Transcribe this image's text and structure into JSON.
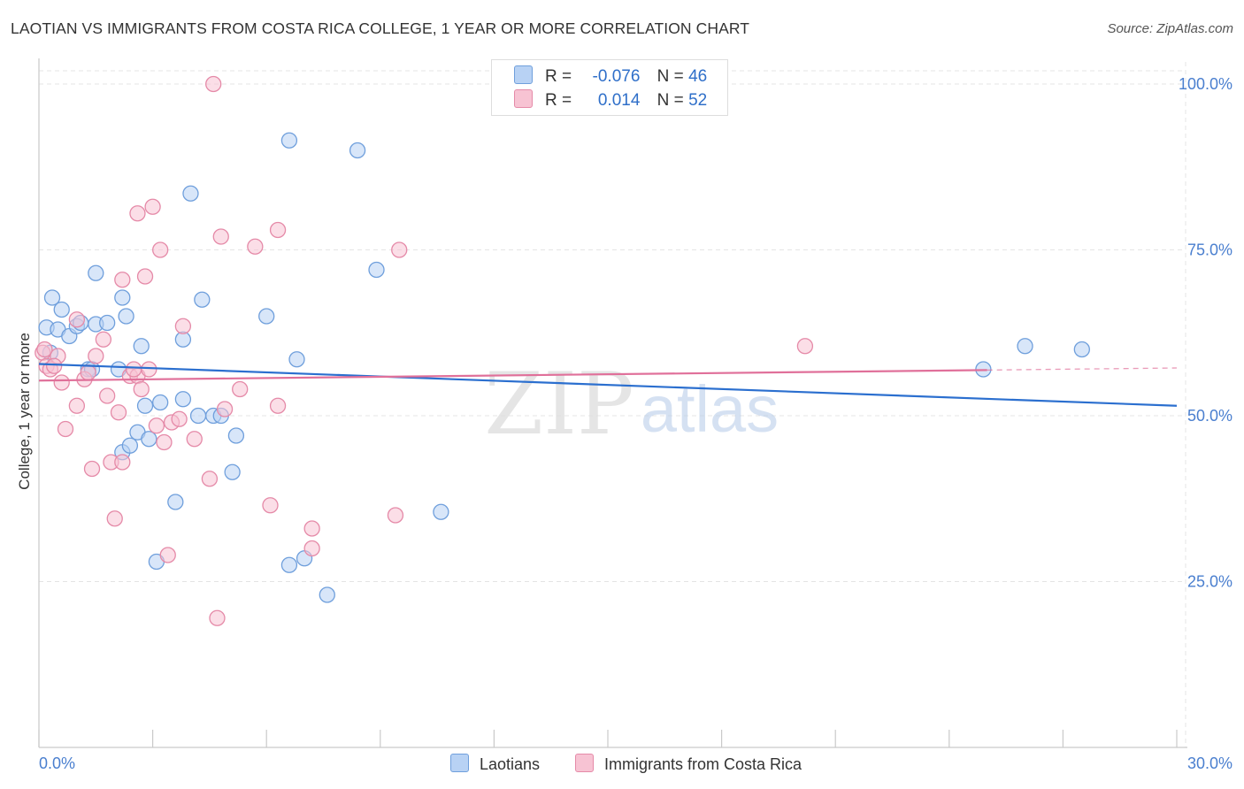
{
  "title": "LAOTIAN VS IMMIGRANTS FROM COSTA RICA COLLEGE, 1 YEAR OR MORE CORRELATION CHART",
  "source": "Source: ZipAtlas.com",
  "watermark": {
    "zip": "ZIP",
    "atlas": "atlas"
  },
  "legend": {
    "rows": [
      {
        "r_label": "R =",
        "r_value": "-0.076",
        "n_label": "N =",
        "n_value": "46"
      },
      {
        "r_label": "R =",
        "r_value": "0.014",
        "n_label": "N =",
        "n_value": "52"
      }
    ]
  },
  "colors": {
    "blue_fill": "#b8d2f4",
    "blue_stroke": "#6f9fdc",
    "blue_line": "#2b6fcf",
    "pink_fill": "#f7c3d3",
    "pink_stroke": "#e58aa8",
    "pink_line": "#e0709a",
    "axis_text": "#4a7fcf",
    "grid": "#e4e4e4"
  },
  "chart_data": {
    "type": "scatter",
    "title": "LAOTIAN VS IMMIGRANTS FROM COSTA RICA COLLEGE, 1 YEAR OR MORE CORRELATION CHART",
    "xlabel": "",
    "ylabel": "College, 1 year or more",
    "xlim": [
      0,
      30
    ],
    "ylim": [
      0,
      102
    ],
    "x_tick_labels": [
      "0.0%",
      "30.0%"
    ],
    "y_ticks": [
      25,
      50,
      75,
      100
    ],
    "y_tick_labels": [
      "25.0%",
      "50.0%",
      "75.0%",
      "100.0%"
    ],
    "grid": true,
    "legend_position": "top-center",
    "series": [
      {
        "name": "Laotians",
        "color": "#6f9fdc",
        "r": -0.076,
        "n": 46,
        "trend": {
          "x": [
            0,
            30
          ],
          "y": [
            57.8,
            51.5
          ]
        },
        "points": [
          [
            0.2,
            63.3
          ],
          [
            0.3,
            59.5
          ],
          [
            0.35,
            67.8
          ],
          [
            0.5,
            63.0
          ],
          [
            0.6,
            66.0
          ],
          [
            0.8,
            62.0
          ],
          [
            1.0,
            63.5
          ],
          [
            1.1,
            64.0
          ],
          [
            1.3,
            57.0
          ],
          [
            1.4,
            57.0
          ],
          [
            1.5,
            63.8
          ],
          [
            1.5,
            71.5
          ],
          [
            1.8,
            64.0
          ],
          [
            2.1,
            57.0
          ],
          [
            2.2,
            44.5
          ],
          [
            2.2,
            67.8
          ],
          [
            2.3,
            65.0
          ],
          [
            2.4,
            45.5
          ],
          [
            2.6,
            47.5
          ],
          [
            2.7,
            60.5
          ],
          [
            2.8,
            51.5
          ],
          [
            2.9,
            46.5
          ],
          [
            3.1,
            28.0
          ],
          [
            3.2,
            52.0
          ],
          [
            3.6,
            37.0
          ],
          [
            3.8,
            61.5
          ],
          [
            3.8,
            52.5
          ],
          [
            4.0,
            83.5
          ],
          [
            4.2,
            50.0
          ],
          [
            4.3,
            67.5
          ],
          [
            4.6,
            50.0
          ],
          [
            4.8,
            50.0
          ],
          [
            5.1,
            41.5
          ],
          [
            5.2,
            47.0
          ],
          [
            6.0,
            65.0
          ],
          [
            6.6,
            27.5
          ],
          [
            6.6,
            91.5
          ],
          [
            6.8,
            58.5
          ],
          [
            7.0,
            28.5
          ],
          [
            7.6,
            23.0
          ],
          [
            8.4,
            90.0
          ],
          [
            8.9,
            72.0
          ],
          [
            10.6,
            35.5
          ],
          [
            24.9,
            57.0
          ],
          [
            26.0,
            60.5
          ],
          [
            27.5,
            60.0
          ]
        ]
      },
      {
        "name": "Immigrants from Costa Rica",
        "color": "#e58aa8",
        "r": 0.014,
        "n": 52,
        "trend": {
          "x": [
            0,
            30
          ],
          "y": [
            55.3,
            57.2
          ]
        },
        "points": [
          [
            0.1,
            59.5
          ],
          [
            0.2,
            57.5
          ],
          [
            0.3,
            57.0
          ],
          [
            0.5,
            59.0
          ],
          [
            0.6,
            55.0
          ],
          [
            0.7,
            48.0
          ],
          [
            1.0,
            51.5
          ],
          [
            1.0,
            64.5
          ],
          [
            1.2,
            55.5
          ],
          [
            1.4,
            42.0
          ],
          [
            1.5,
            59.0
          ],
          [
            1.7,
            61.5
          ],
          [
            1.8,
            53.0
          ],
          [
            1.9,
            43.0
          ],
          [
            2.0,
            34.5
          ],
          [
            2.1,
            50.5
          ],
          [
            2.2,
            43.0
          ],
          [
            2.2,
            70.5
          ],
          [
            2.4,
            56.0
          ],
          [
            2.6,
            56.0
          ],
          [
            2.6,
            80.5
          ],
          [
            2.7,
            54.0
          ],
          [
            2.8,
            71.0
          ],
          [
            2.9,
            57.0
          ],
          [
            3.0,
            81.5
          ],
          [
            3.1,
            48.5
          ],
          [
            3.2,
            75.0
          ],
          [
            3.3,
            46.0
          ],
          [
            3.4,
            29.0
          ],
          [
            3.5,
            49.0
          ],
          [
            3.7,
            49.5
          ],
          [
            3.8,
            63.5
          ],
          [
            4.1,
            46.5
          ],
          [
            4.5,
            40.5
          ],
          [
            4.6,
            100.0
          ],
          [
            4.7,
            19.5
          ],
          [
            4.8,
            77.0
          ],
          [
            4.9,
            51.0
          ],
          [
            5.3,
            54.0
          ],
          [
            5.7,
            75.5
          ],
          [
            6.1,
            36.5
          ],
          [
            6.3,
            78.0
          ],
          [
            6.3,
            51.5
          ],
          [
            7.2,
            30.0
          ],
          [
            7.2,
            33.0
          ],
          [
            9.4,
            35.0
          ],
          [
            9.5,
            75.0
          ],
          [
            20.2,
            60.5
          ],
          [
            0.15,
            60.0
          ],
          [
            0.4,
            57.5
          ],
          [
            1.3,
            56.5
          ],
          [
            2.5,
            57.0
          ]
        ]
      }
    ]
  }
}
